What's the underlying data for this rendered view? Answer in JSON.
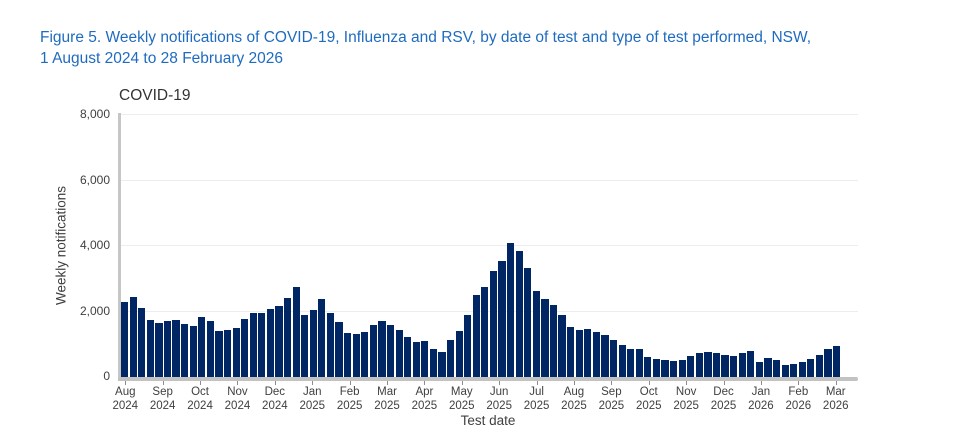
{
  "figure_title": {
    "line1": "Figure 5. Weekly notifications of COVID-19, Influenza and RSV, by date of test and type of test performed, NSW,",
    "line2": "1 August 2024 to 28 February 2026"
  },
  "colors": {
    "figure_title_blue": "#1f6bbf",
    "bar_navy": "#002664",
    "axis_gray": "#c6c6c6",
    "text_gray": "#404040"
  },
  "chart_data": {
    "type": "bar",
    "title": "COVID-19",
    "xlabel": "Test date",
    "ylabel": "Weekly notifications",
    "ylim": [
      0,
      8000
    ],
    "grid": true,
    "legend_position": "none",
    "x_unit": "week",
    "yticks": [
      {
        "value": 0,
        "label": "0"
      },
      {
        "value": 2000,
        "label": "2,000"
      },
      {
        "value": 4000,
        "label": "4,000"
      },
      {
        "value": 6000,
        "label": "6,000"
      },
      {
        "value": 8000,
        "label": "8,000"
      }
    ],
    "x_tick_labels": [
      {
        "month": "Aug",
        "year": "2024"
      },
      {
        "month": "Sep",
        "year": "2024"
      },
      {
        "month": "Oct",
        "year": "2024"
      },
      {
        "month": "Nov",
        "year": "2024"
      },
      {
        "month": "Dec",
        "year": "2024"
      },
      {
        "month": "Jan",
        "year": "2025"
      },
      {
        "month": "Feb",
        "year": "2025"
      },
      {
        "month": "Mar",
        "year": "2025"
      },
      {
        "month": "Apr",
        "year": "2025"
      },
      {
        "month": "May",
        "year": "2025"
      },
      {
        "month": "Jun",
        "year": "2025"
      },
      {
        "month": "Jul",
        "year": "2025"
      },
      {
        "month": "Aug",
        "year": "2025"
      },
      {
        "month": "Sep",
        "year": "2025"
      },
      {
        "month": "Oct",
        "year": "2025"
      },
      {
        "month": "Nov",
        "year": "2025"
      },
      {
        "month": "Dec",
        "year": "2025"
      },
      {
        "month": "Jan",
        "year": "2026"
      },
      {
        "month": "Feb",
        "year": "2026"
      },
      {
        "month": "Mar",
        "year": "2026"
      }
    ],
    "values": [
      2300,
      2450,
      2100,
      1750,
      1650,
      1700,
      1750,
      1620,
      1570,
      1830,
      1710,
      1410,
      1430,
      1500,
      1770,
      1960,
      1940,
      2090,
      2160,
      2420,
      2750,
      1890,
      2060,
      2370,
      1940,
      1680,
      1330,
      1300,
      1380,
      1580,
      1710,
      1580,
      1450,
      1220,
      1070,
      1100,
      870,
      760,
      1140,
      1400,
      1900,
      2500,
      2750,
      3230,
      3540,
      4100,
      3840,
      3330,
      2620,
      2370,
      2210,
      1890,
      1530,
      1430,
      1460,
      1360,
      1270,
      1120,
      990,
      870,
      860,
      610,
      560,
      530,
      490,
      530,
      630,
      720,
      760,
      720,
      660,
      630,
      730,
      790,
      460,
      590,
      510,
      360,
      410,
      460,
      560,
      660,
      870,
      950
    ]
  }
}
